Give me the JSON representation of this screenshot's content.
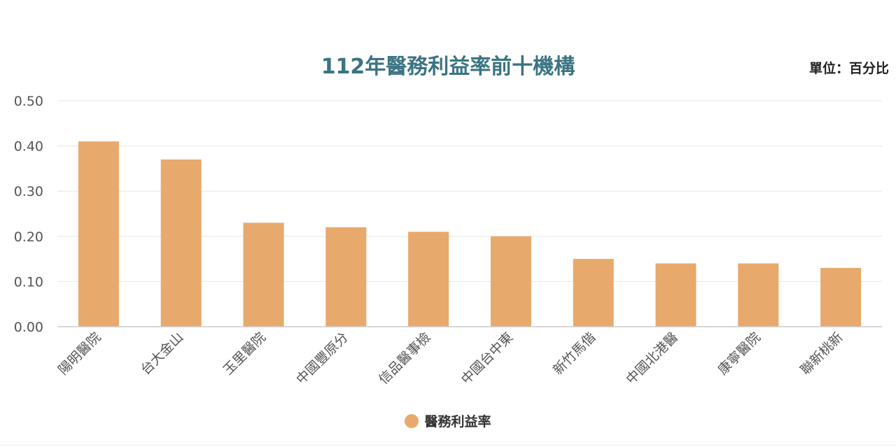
{
  "chart_data": {
    "type": "bar",
    "title": "112年醫務利益率前十機構",
    "unit_label": "單位：百分比",
    "categories": [
      "陽明醫院",
      "台大金山",
      "玉里醫院",
      "中國豐原分",
      "信品醫事檢",
      "中國台中東",
      "新竹馬偕",
      "中國北港醫",
      "康寧醫院",
      "聯新桃新"
    ],
    "series": [
      {
        "name": "醫務利益率",
        "values": [
          0.41,
          0.37,
          0.23,
          0.22,
          0.21,
          0.2,
          0.15,
          0.14,
          0.14,
          0.13
        ]
      }
    ],
    "yticks": [
      "0.00",
      "0.10",
      "0.20",
      "0.30",
      "0.40",
      "0.50"
    ],
    "ylim": [
      0,
      0.5
    ],
    "grid": true,
    "legend_position": "bottom",
    "bar_color": "#e8a96c",
    "title_color": "#3b7482"
  }
}
